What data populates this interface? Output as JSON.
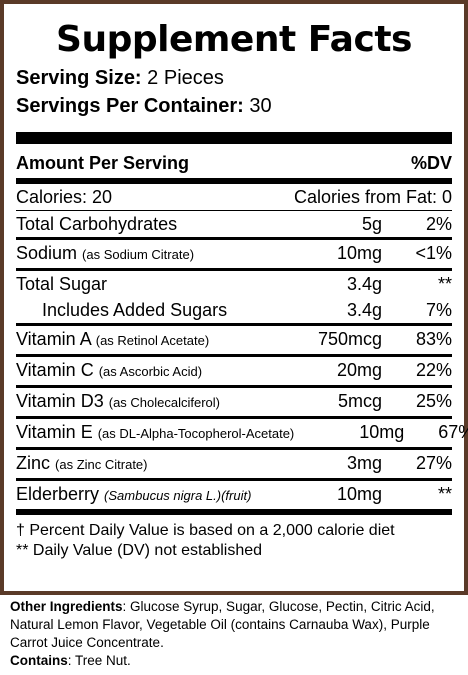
{
  "panel": {
    "title": "Supplement Facts",
    "serving_size_label": "Serving Size:",
    "serving_size_value": "2 Pieces",
    "servings_label": "Servings Per Container:",
    "servings_value": "30",
    "amount_header": "Amount Per Serving",
    "dv_header": "%DV",
    "calories_label": "Calories: 20",
    "calories_fat_label": "Calories from Fat: 0",
    "border_color": "#5a3a28"
  },
  "nutrients": [
    {
      "name": "Total Carbohydrates",
      "note": "",
      "amount": "5g",
      "dv": "2%"
    },
    {
      "name": "Sodium",
      "note": "(as Sodium Citrate)",
      "amount": "10mg",
      "dv": "<1%"
    },
    {
      "name": "Total Sugar",
      "note": "",
      "amount": "3.4g",
      "dv": "**"
    },
    {
      "name": "Includes Added Sugars",
      "note": "",
      "amount": "3.4g",
      "dv": "7%"
    },
    {
      "name": "Vitamin A",
      "note": "(as Retinol Acetate)",
      "amount": "750mcg",
      "dv": "83%"
    },
    {
      "name": "Vitamin C",
      "note": "(as Ascorbic Acid)",
      "amount": "20mg",
      "dv": "22%"
    },
    {
      "name": "Vitamin D3",
      "note": "(as Cholecalciferol)",
      "amount": "5mcg",
      "dv": "25%"
    },
    {
      "name": "Vitamin E",
      "note": "(as DL-Alpha-Tocopherol-Acetate)",
      "amount": "10mg",
      "dv": "67%"
    },
    {
      "name": "Zinc",
      "note": "(as Zinc Citrate)",
      "amount": "3mg",
      "dv": "27%"
    },
    {
      "name": "Elderberry",
      "note": "(Sambucus nigra L.)(fruit)",
      "amount": "10mg",
      "dv": "**"
    }
  ],
  "footnotes": {
    "daily_value": "† Percent Daily Value is based on a 2,000 calorie diet",
    "not_established": "** Daily Value (DV) not established"
  },
  "other": {
    "ingredients_label": "Other Ingredients",
    "ingredients_text": ": Glucose Syrup, Sugar, Glucose, Pectin, Citric Acid, Natural Lemon Flavor, Vegetable Oil (contains Carnauba Wax), Purple Carrot Juice Concentrate.",
    "contains_label": "Contains",
    "contains_text": ": Tree Nut."
  }
}
